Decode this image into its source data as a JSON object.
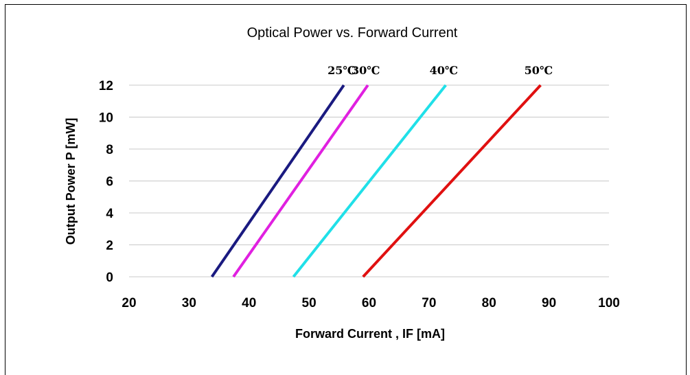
{
  "chart_data": {
    "type": "line",
    "title": "Optical Power vs. Forward Current",
    "xlabel": "Forward Current , IF [mA]",
    "ylabel": "Output Power  P [mW]",
    "xlim": [
      20,
      100
    ],
    "ylim": [
      0,
      12
    ],
    "xticks": [
      20,
      30,
      40,
      50,
      60,
      70,
      80,
      90,
      100
    ],
    "yticks": [
      0,
      2,
      4,
      6,
      8,
      10,
      12
    ],
    "grid": "horizontal",
    "series": [
      {
        "name": "25℃",
        "color": "#1a1a80",
        "x": [
          33.8,
          55.8
        ],
        "y": [
          0,
          12
        ]
      },
      {
        "name": "30℃",
        "color": "#e020e0",
        "x": [
          37.4,
          59.8
        ],
        "y": [
          0,
          12
        ]
      },
      {
        "name": "40℃",
        "color": "#20e0e8",
        "x": [
          47.4,
          72.8
        ],
        "y": [
          0,
          12
        ]
      },
      {
        "name": "50℃",
        "color": "#e01010",
        "x": [
          59.0,
          88.6
        ],
        "y": [
          0,
          12
        ]
      }
    ]
  }
}
